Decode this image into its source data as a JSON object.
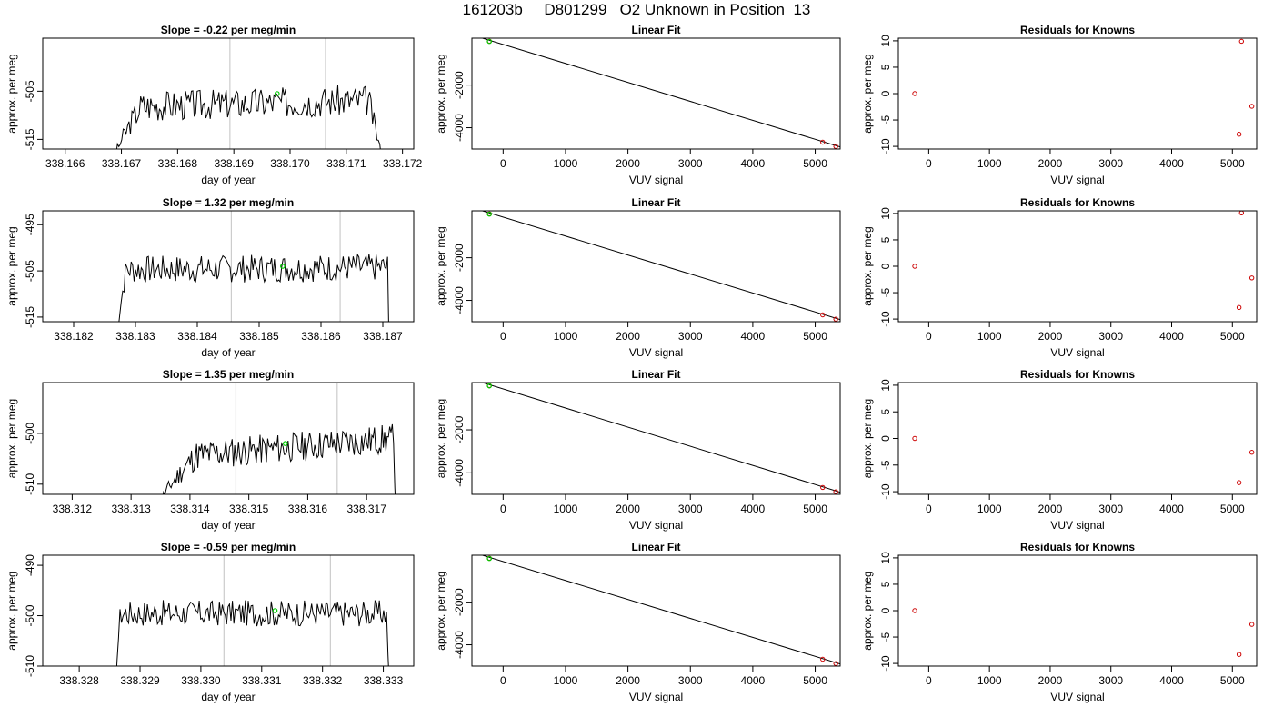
{
  "page_title": "161203b     D801299   O2 Unknown in Position  13",
  "colors": {
    "frame": "#000000",
    "trace": "#000000",
    "marker_line": "#cccccc",
    "unknown_point": "#00cc00",
    "known_point": "#cc0000"
  },
  "chart_data": [
    {
      "type": "line",
      "title": "Slope =  -0.22  per meg/min",
      "xlabel": "day of year",
      "ylabel": "approx. per meg",
      "xlim": [
        338.1656,
        338.1722
      ],
      "ylim": [
        -517,
        -494
      ],
      "xticks": [
        "338.166",
        "338.167",
        "338.168",
        "338.169",
        "338.170",
        "338.171",
        "338.172"
      ],
      "yticks": [
        "-515",
        "-505"
      ],
      "vlines": [
        338.16893,
        338.17063
      ],
      "green_point": [
        338.16977,
        -505.5
      ],
      "trace": {
        "x_start": 338.1668,
        "x_end": 338.1717,
        "base": -507.5,
        "amp": 3.2,
        "seed": 3,
        "rise_x": 338.16735,
        "drop_x": 338.1714,
        "low": -522,
        "trend": 1.5
      }
    },
    {
      "type": "scatter",
      "title": "Linear Fit",
      "xlabel": "VUV signal",
      "ylabel": "approx. per meg",
      "xlim": [
        -500,
        5400
      ],
      "ylim": [
        -5000,
        200
      ],
      "xticks": [
        0,
        1000,
        2000,
        3000,
        4000,
        5000
      ],
      "yticks": [
        -2000,
        -4000
      ],
      "fit_line": [
        [
          -500,
          350
        ],
        [
          5400,
          -4900
        ]
      ],
      "unknown": [
        [
          -220,
          45
        ]
      ],
      "knowns": [
        [
          -220,
          60
        ],
        [
          5120,
          -4680
        ],
        [
          5330,
          -4880
        ]
      ]
    },
    {
      "type": "scatter",
      "title": "Residuals for Knowns",
      "xlabel": "VUV signal",
      "ylabel": "approx. per meg",
      "xlim": [
        -500,
        5400
      ],
      "ylim": [
        -10.5,
        10.5
      ],
      "xticks": [
        0,
        1000,
        2000,
        3000,
        4000,
        5000
      ],
      "yticks": [
        10,
        5,
        0,
        -5,
        -10
      ],
      "points": [
        [
          -230,
          0
        ],
        [
          5150,
          9.9
        ],
        [
          5320,
          -2.4
        ],
        [
          5110,
          -7.7
        ]
      ]
    },
    {
      "type": "line",
      "title": "Slope =  1.32  per meg/min",
      "xlabel": "day of year",
      "ylabel": "approx. per meg",
      "xlim": [
        338.1815,
        338.1875
      ],
      "ylim": [
        -516,
        -492
      ],
      "xticks": [
        "338.182",
        "338.183",
        "338.184",
        "338.185",
        "338.186",
        "338.187"
      ],
      "yticks": [
        "-515",
        "-505",
        "-495"
      ],
      "vlines": [
        338.18455,
        338.18631
      ],
      "green_point": [
        338.18538,
        -504
      ],
      "trace": {
        "x_start": 338.1827,
        "x_end": 338.1871,
        "base": -504.5,
        "amp": 3.0,
        "seed": 7,
        "rise_x": 338.18285,
        "drop_x": 338.18708,
        "low": -521,
        "trend": 0.5
      }
    },
    {
      "type": "scatter",
      "title": "Linear Fit",
      "xlabel": "VUV signal",
      "ylabel": "approx. per meg",
      "xlim": [
        -500,
        5400
      ],
      "ylim": [
        -5000,
        200
      ],
      "xticks": [
        0,
        1000,
        2000,
        3000,
        4000,
        5000
      ],
      "yticks": [
        -2000,
        -4000
      ],
      "fit_line": [
        [
          -500,
          350
        ],
        [
          5400,
          -4900
        ]
      ],
      "unknown": [
        [
          -220,
          45
        ]
      ],
      "knowns": [
        [
          -220,
          60
        ],
        [
          5120,
          -4680
        ],
        [
          5330,
          -4880
        ]
      ]
    },
    {
      "type": "scatter",
      "title": "Residuals for Knowns",
      "xlabel": "VUV signal",
      "ylabel": "approx. per meg",
      "xlim": [
        -500,
        5400
      ],
      "ylim": [
        -10.5,
        10.5
      ],
      "xticks": [
        0,
        1000,
        2000,
        3000,
        4000,
        5000
      ],
      "yticks": [
        10,
        5,
        0,
        -5,
        -10
      ],
      "points": [
        [
          -230,
          0
        ],
        [
          5150,
          10.1
        ],
        [
          5320,
          -2.2
        ],
        [
          5110,
          -7.8
        ]
      ]
    },
    {
      "type": "line",
      "title": "Slope =  1.35  per meg/min",
      "xlabel": "day of year",
      "ylabel": "approx. per meg",
      "xlim": [
        338.3115,
        338.3178
      ],
      "ylim": [
        -512,
        -490
      ],
      "xticks": [
        "338.312",
        "338.313",
        "338.314",
        "338.315",
        "338.316",
        "338.317"
      ],
      "yticks": [
        "-510",
        "-500"
      ],
      "vlines": [
        338.31478,
        338.3165
      ],
      "green_point": [
        338.31562,
        -502
      ],
      "trace": {
        "x_start": 338.3134,
        "x_end": 338.3175,
        "base": -503,
        "amp": 3.0,
        "seed": 11,
        "rise_x": 338.3141,
        "drop_x": 338.31745,
        "low": -516,
        "trend": 4
      }
    },
    {
      "type": "scatter",
      "title": "Linear Fit",
      "xlabel": "VUV signal",
      "ylabel": "approx. per meg",
      "xlim": [
        -500,
        5400
      ],
      "ylim": [
        -5000,
        200
      ],
      "xticks": [
        0,
        1000,
        2000,
        3000,
        4000,
        5000
      ],
      "yticks": [
        -2000,
        -4000
      ],
      "fit_line": [
        [
          -500,
          350
        ],
        [
          5400,
          -4900
        ]
      ],
      "unknown": [
        [
          -220,
          45
        ]
      ],
      "knowns": [
        [
          -220,
          60
        ],
        [
          5120,
          -4680
        ],
        [
          5330,
          -4880
        ]
      ]
    },
    {
      "type": "scatter",
      "title": "Residuals for Knowns",
      "xlabel": "VUV signal",
      "ylabel": "approx. per meg",
      "xlim": [
        -500,
        5400
      ],
      "ylim": [
        -10.5,
        10.5
      ],
      "xticks": [
        0,
        1000,
        2000,
        3000,
        4000,
        5000
      ],
      "yticks": [
        10,
        5,
        0,
        -5,
        -10
      ],
      "points": [
        [
          -230,
          0
        ],
        [
          5320,
          -2.6
        ],
        [
          5110,
          -8.3
        ]
      ]
    },
    {
      "type": "line",
      "title": "Slope =  -0.59  per meg/min",
      "xlabel": "day of year",
      "ylabel": "approx. per meg",
      "xlim": [
        338.3274,
        338.3335
      ],
      "ylim": [
        -510,
        -488
      ],
      "xticks": [
        "338.328",
        "338.329",
        "338.330",
        "338.331",
        "338.332",
        "338.333"
      ],
      "yticks": [
        "-510",
        "-500",
        "-490"
      ],
      "vlines": [
        338.33038,
        338.33213
      ],
      "green_point": [
        338.33122,
        -499
      ],
      "trace": {
        "x_start": 338.3286,
        "x_end": 338.3331,
        "base": -499.5,
        "amp": 2.6,
        "seed": 17,
        "rise_x": 338.32868,
        "drop_x": 338.33305,
        "low": -514,
        "trend": 0
      }
    },
    {
      "type": "scatter",
      "title": "Linear Fit",
      "xlabel": "VUV signal",
      "ylabel": "approx. per meg",
      "xlim": [
        -500,
        5400
      ],
      "ylim": [
        -5000,
        200
      ],
      "xticks": [
        0,
        1000,
        2000,
        3000,
        4000,
        5000
      ],
      "yticks": [
        -2000,
        -4000
      ],
      "fit_line": [
        [
          -500,
          350
        ],
        [
          5400,
          -4900
        ]
      ],
      "unknown": [
        [
          -220,
          45
        ]
      ],
      "knowns": [
        [
          -220,
          60
        ],
        [
          5120,
          -4680
        ],
        [
          5330,
          -4880
        ]
      ]
    },
    {
      "type": "scatter",
      "title": "Residuals for Knowns",
      "xlabel": "VUV signal",
      "ylabel": "approx. per meg",
      "xlim": [
        -500,
        5400
      ],
      "ylim": [
        -10.5,
        10.5
      ],
      "xticks": [
        0,
        1000,
        2000,
        3000,
        4000,
        5000
      ],
      "yticks": [
        10,
        5,
        0,
        -5,
        -10
      ],
      "points": [
        [
          -230,
          0
        ],
        [
          5320,
          -2.6
        ],
        [
          5110,
          -8.3
        ]
      ]
    }
  ]
}
